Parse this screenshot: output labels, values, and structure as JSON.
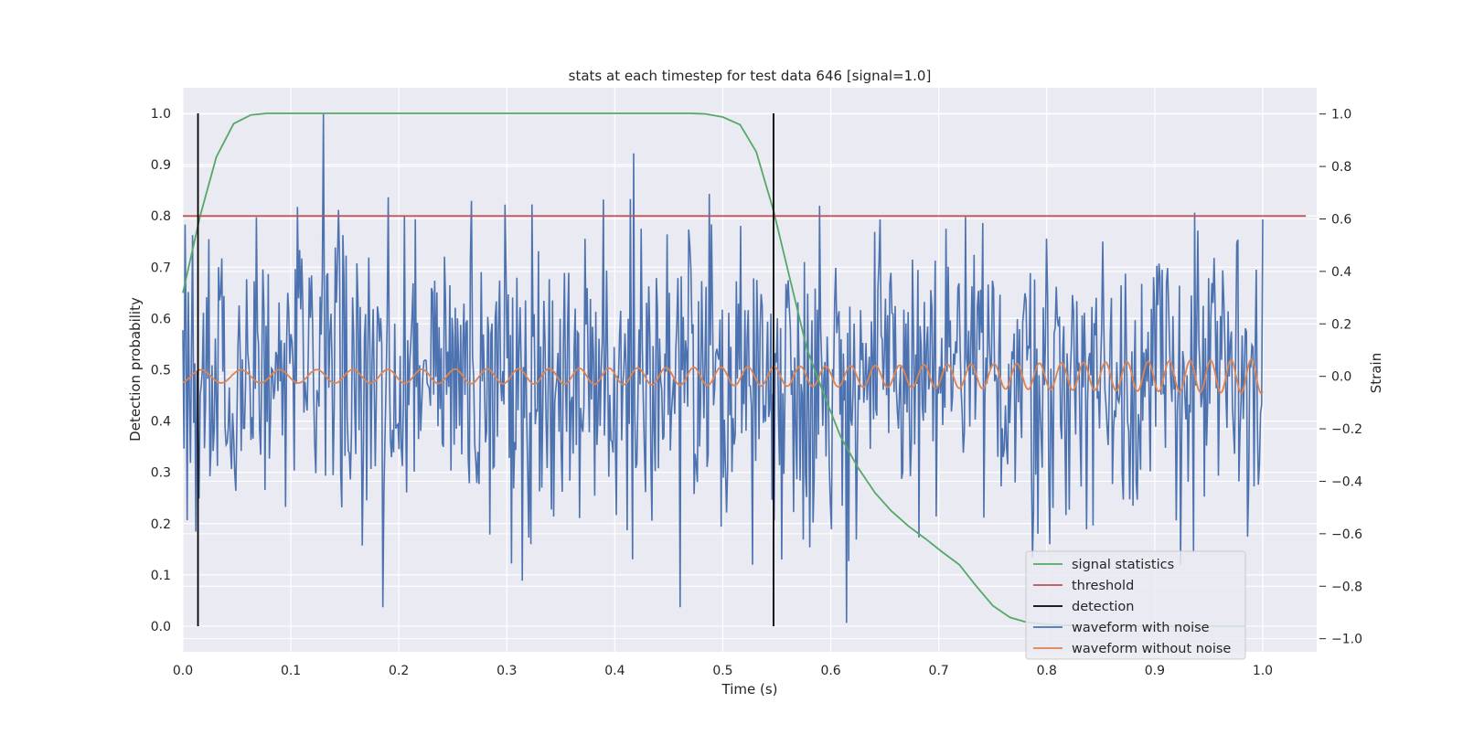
{
  "chart_data": {
    "type": "line",
    "title": "stats at each timestep for test data 646 [signal=1.0]",
    "xlabel": "Time (s)",
    "ylabel": "Detection probability",
    "y2label": "Strain",
    "xlim": [
      0.0,
      1.05
    ],
    "ylim": [
      -0.05,
      1.05
    ],
    "y2lim": [
      -1.05,
      1.1
    ],
    "xticks": [
      "0.0",
      "0.1",
      "0.2",
      "0.3",
      "0.4",
      "0.5",
      "0.6",
      "0.7",
      "0.8",
      "0.9",
      "1.0"
    ],
    "yticks": [
      "0.0",
      "0.1",
      "0.2",
      "0.3",
      "0.4",
      "0.5",
      "0.6",
      "0.7",
      "0.8",
      "0.9",
      "1.0"
    ],
    "y2ticks": [
      "−1.0",
      "−0.8",
      "−0.6",
      "−0.4",
      "−0.2",
      "0.0",
      "0.2",
      "0.4",
      "0.6",
      "0.8",
      "1.0"
    ],
    "grid": true,
    "legend_position": "lower-right",
    "threshold": 0.8,
    "detections_x": [
      0.014,
      0.547
    ],
    "series": [
      {
        "name": "signal statistics",
        "color": "#55a868",
        "axis": "left",
        "x": [
          0.0,
          0.016,
          0.031,
          0.047,
          0.063,
          0.078,
          0.1,
          0.2,
          0.3,
          0.4,
          0.47,
          0.484,
          0.5,
          0.516,
          0.531,
          0.547,
          0.563,
          0.578,
          0.594,
          0.609,
          0.625,
          0.641,
          0.656,
          0.672,
          0.688,
          0.703,
          0.719,
          0.734,
          0.75,
          0.766,
          0.781,
          0.797,
          0.813,
          0.828,
          0.844,
          0.859,
          0.875,
          0.891,
          0.906,
          0.922,
          0.938,
          0.953,
          0.969,
          0.984
        ],
        "y": [
          0.65,
          0.8,
          0.915,
          0.98,
          0.997,
          1.0,
          1.0,
          1.0,
          1.0,
          1.0,
          1.0,
          0.999,
          0.993,
          0.978,
          0.925,
          0.81,
          0.67,
          0.54,
          0.45,
          0.37,
          0.31,
          0.26,
          0.225,
          0.195,
          0.17,
          0.145,
          0.12,
          0.08,
          0.04,
          0.017,
          0.008,
          0.004,
          0.002,
          0.001,
          0.001,
          0.0,
          0.0,
          0.0,
          0.0,
          0.0,
          0.0,
          0.0,
          0.0,
          0.0
        ]
      },
      {
        "name": "threshold",
        "color": "#c44e52",
        "axis": "left",
        "x": [
          0.0,
          1.04
        ],
        "y": [
          0.8,
          0.8
        ]
      },
      {
        "name": "detection",
        "color": "#000000",
        "axis": "left",
        "x": [
          0.014,
          0.547
        ],
        "y": [
          1.0,
          1.0
        ]
      },
      {
        "name": "waveform with noise",
        "color": "#4c72b0",
        "axis": "right",
        "samples": 1000,
        "x_range": [
          0.0,
          1.0
        ],
        "y_range": [
          -0.95,
          1.0
        ],
        "peaks": [
          {
            "x": 0.13,
            "y": 1.0
          },
          {
            "x": 0.417,
            "y": 0.85
          },
          {
            "x": 0.615,
            "y": -0.94
          },
          {
            "x": 0.185,
            "y": -0.88
          },
          {
            "x": 0.46,
            "y": -0.88
          }
        ]
      },
      {
        "name": "waveform without noise",
        "color": "#dd8452",
        "axis": "right",
        "x_range": [
          0.0,
          1.0
        ],
        "amplitude_start": 0.025,
        "amplitude_end": 0.065,
        "frequency_start_hz": 26,
        "frequency_end_hz": 54
      }
    ]
  }
}
